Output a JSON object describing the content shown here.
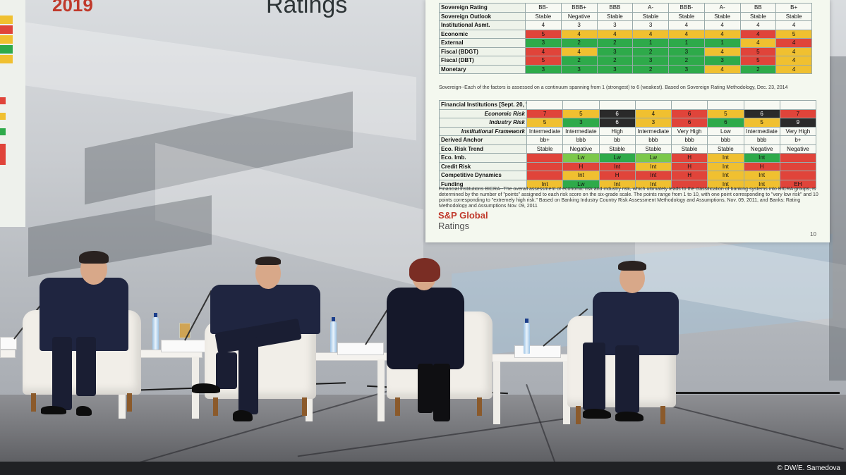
{
  "banner": {
    "year": "2019",
    "title": "Ratings"
  },
  "slide": {
    "sovereign_rows": [
      {
        "label": "Sovereign Rating",
        "cells": [
          [
            "BB-",
            "wht"
          ],
          [
            "BBB+",
            "wht"
          ],
          [
            "BBB",
            "wht"
          ],
          [
            "A-",
            "wht"
          ],
          [
            "BBB-",
            "wht"
          ],
          [
            "A-",
            "wht"
          ],
          [
            "BB",
            "wht"
          ],
          [
            "B+",
            "wht"
          ]
        ]
      },
      {
        "label": "Sovereign Outlook",
        "cells": [
          [
            "Stable",
            "wht"
          ],
          [
            "Negative",
            "wht"
          ],
          [
            "Stable",
            "wht"
          ],
          [
            "Stable",
            "wht"
          ],
          [
            "Stable",
            "wht"
          ],
          [
            "Stable",
            "wht"
          ],
          [
            "Stable",
            "wht"
          ],
          [
            "Stable",
            "wht"
          ]
        ]
      },
      {
        "label": "Institutional Asmt.",
        "cells": [
          [
            "4",
            "wht"
          ],
          [
            "3",
            "wht"
          ],
          [
            "3",
            "wht"
          ],
          [
            "3",
            "wht"
          ],
          [
            "4",
            "wht"
          ],
          [
            "4",
            "wht"
          ],
          [
            "4",
            "wht"
          ],
          [
            "4",
            "wht"
          ]
        ]
      },
      {
        "label": "Economic",
        "cells": [
          [
            "5",
            "red"
          ],
          [
            "4",
            "yel"
          ],
          [
            "4",
            "yel"
          ],
          [
            "4",
            "yel"
          ],
          [
            "4",
            "yel"
          ],
          [
            "4",
            "yel"
          ],
          [
            "4",
            "red"
          ],
          [
            "5",
            "yel"
          ]
        ]
      },
      {
        "label": "External",
        "cells": [
          [
            "3",
            "grn"
          ],
          [
            "2",
            "grn"
          ],
          [
            "2",
            "grn"
          ],
          [
            "1",
            "grn"
          ],
          [
            "1",
            "grn"
          ],
          [
            "1",
            "grn"
          ],
          [
            "4",
            "yel"
          ],
          [
            "4",
            "red"
          ]
        ]
      },
      {
        "label": "Fiscal (BDGT)",
        "cells": [
          [
            "4",
            "red"
          ],
          [
            "4",
            "yel"
          ],
          [
            "3",
            "grn"
          ],
          [
            "2",
            "grn"
          ],
          [
            "3",
            "grn"
          ],
          [
            "4",
            "yel"
          ],
          [
            "5",
            "red"
          ],
          [
            "4",
            "yel"
          ]
        ]
      },
      {
        "label": "Fiscal (DBT)",
        "cells": [
          [
            "5",
            "red"
          ],
          [
            "2",
            "grn"
          ],
          [
            "2",
            "grn"
          ],
          [
            "3",
            "grn"
          ],
          [
            "2",
            "grn"
          ],
          [
            "3",
            "grn"
          ],
          [
            "5",
            "red"
          ],
          [
            "4",
            "yel"
          ]
        ]
      },
      {
        "label": "Monetary",
        "cells": [
          [
            "3",
            "grn"
          ],
          [
            "3",
            "grn"
          ],
          [
            "3",
            "grn"
          ],
          [
            "2",
            "grn"
          ],
          [
            "3",
            "grn"
          ],
          [
            "4",
            "yel"
          ],
          [
            "2",
            "grn"
          ],
          [
            "4",
            "yel"
          ]
        ]
      }
    ],
    "sovereign_note": "Sovereign--Each of the factors is assessed on a continuum spanning from 1 (strongest) to 6 (weakest). Based on Sovereign Rating Methodology, Dec. 23, 2014",
    "fi_header": "Financial Institutions [Sept. 20, '19]",
    "fi_rows": [
      {
        "label": "Economic Risk",
        "italic": true,
        "cells": [
          [
            "7",
            "red"
          ],
          [
            "5",
            "yel"
          ],
          [
            "6",
            "blk"
          ],
          [
            "4",
            "yel"
          ],
          [
            "6",
            "red"
          ],
          [
            "5",
            "yel"
          ],
          [
            "6",
            "blk"
          ],
          [
            "7",
            "red"
          ]
        ]
      },
      {
        "label": "Industry Risk",
        "italic": true,
        "cells": [
          [
            "5",
            "yel"
          ],
          [
            "3",
            "grn"
          ],
          [
            "6",
            "blk"
          ],
          [
            "3",
            "yel"
          ],
          [
            "6",
            "red"
          ],
          [
            "6",
            "grn"
          ],
          [
            "5",
            "yel"
          ],
          [
            "9",
            "blk"
          ]
        ]
      },
      {
        "label": "Institutional Framework",
        "italic": true,
        "cells": [
          [
            "Intermediate",
            "wht"
          ],
          [
            "Intermediate",
            "wht"
          ],
          [
            "High",
            "wht"
          ],
          [
            "Intermediate",
            "wht"
          ],
          [
            "Very High",
            "wht"
          ],
          [
            "Low",
            "wht"
          ],
          [
            "Intermediate",
            "wht"
          ],
          [
            "Very High",
            "wht"
          ]
        ]
      },
      {
        "label": "Derived Anchor",
        "italic": false,
        "cells": [
          [
            "bb+",
            "wht"
          ],
          [
            "bbb",
            "wht"
          ],
          [
            "bb",
            "wht"
          ],
          [
            "bbb",
            "wht"
          ],
          [
            "bbb",
            "wht"
          ],
          [
            "bbb",
            "wht"
          ],
          [
            "bbb",
            "wht"
          ],
          [
            "b+",
            "wht"
          ]
        ]
      },
      {
        "label": "Eco. Risk Trend",
        "italic": false,
        "cells": [
          [
            "Stable",
            "wht"
          ],
          [
            "Negative",
            "wht"
          ],
          [
            "Stable",
            "wht"
          ],
          [
            "Stable",
            "wht"
          ],
          [
            "Stable",
            "wht"
          ],
          [
            "Stable",
            "wht"
          ],
          [
            "Negative",
            "wht"
          ],
          [
            "Negative",
            "wht"
          ]
        ]
      },
      {
        "label": "Eco. Imb.",
        "italic": false,
        "cells": [
          [
            "",
            "red"
          ],
          [
            "Lw",
            "lgr"
          ],
          [
            "Lw",
            "grn"
          ],
          [
            "Lw",
            "lgr"
          ],
          [
            "H",
            "red"
          ],
          [
            "Int",
            "yel"
          ],
          [
            "Int",
            "grn"
          ],
          [
            "",
            "red"
          ]
        ]
      },
      {
        "label": "Credit Risk",
        "italic": false,
        "cells": [
          [
            "",
            "red"
          ],
          [
            "H",
            "red"
          ],
          [
            "Int",
            "red"
          ],
          [
            "Int",
            "yel"
          ],
          [
            "H",
            "red"
          ],
          [
            "Int",
            "yel"
          ],
          [
            "H",
            "red"
          ],
          [
            "",
            "red"
          ]
        ]
      },
      {
        "label": "Competitive Dynamics",
        "italic": false,
        "cells": [
          [
            "",
            "red"
          ],
          [
            "Int",
            "yel"
          ],
          [
            "H",
            "red"
          ],
          [
            "Int",
            "red"
          ],
          [
            "H",
            "red"
          ],
          [
            "Int",
            "yel"
          ],
          [
            "Int",
            "yel"
          ],
          [
            "",
            "red"
          ]
        ]
      },
      {
        "label": "Funding",
        "italic": false,
        "cells": [
          [
            "Int",
            "yel"
          ],
          [
            "Lw",
            "grn"
          ],
          [
            "Int",
            "yel"
          ],
          [
            "Int",
            "yel"
          ],
          [
            "",
            "red"
          ],
          [
            "Int",
            "yel"
          ],
          [
            "Int",
            "yel"
          ],
          [
            "EH",
            "red"
          ]
        ]
      }
    ],
    "fi_note": "Financial Institutions BICRA--The overall assessment of economic risk and industry risk, which ultimately leads to the classification of banking systems into BICRA groups, is determined by the number of \"points\" assigned to each risk score on the six-grade scale. The points range from 1 to 10, with one point corresponding to \"very low risk\" and 10 points corresponding to \"extremely high risk.\" Based on Banking Industry Country Risk Assessment Methodology and Assumptions, Nov. 09, 2011, and Banks: Rating Methodology and Assumptions Nov. 09, 2011",
    "logo_line1": "S&P Global",
    "logo_line2": "Ratings",
    "page_number": "10"
  },
  "credit": "© DW/E. Samedova",
  "colors": {
    "red": "#e0443a",
    "yellow": "#f0c030",
    "green": "#2eaa4a",
    "light_green": "#7cc84a",
    "black": "#2a2a2a",
    "brand_red": "#c0392b"
  }
}
